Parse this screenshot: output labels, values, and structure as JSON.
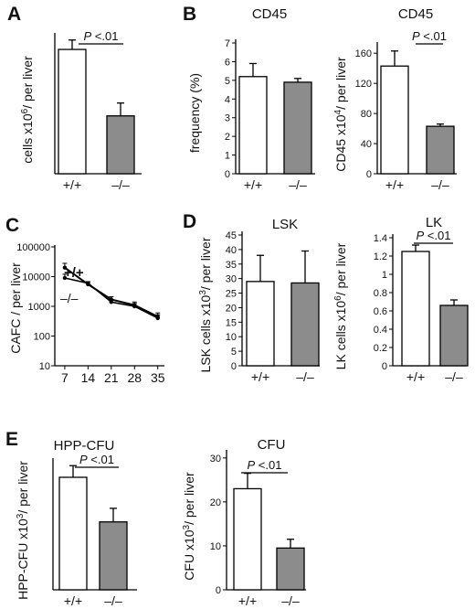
{
  "colors": {
    "wildtype": "#ffffff",
    "knockout": "#8c8c8c",
    "axis": "#000000"
  },
  "panel_letters": [
    "A",
    "B",
    "C",
    "D",
    "E"
  ],
  "chart_data": [
    {
      "id": "A",
      "letter": "A",
      "type": "bar",
      "title": "",
      "ylabel": "cells x10^6/ per liver",
      "ylim": [
        0,
        32
      ],
      "yticks_shown": false,
      "categories": [
        "+/+",
        "–/–"
      ],
      "values": [
        29,
        13.5
      ],
      "errors": [
        2.2,
        3
      ],
      "colors": [
        "#ffffff",
        "#8c8c8c"
      ],
      "annotation": "P <.01"
    },
    {
      "id": "B1",
      "letter": "B",
      "type": "bar",
      "title": "CD45",
      "ylabel": "frequency (%)",
      "ylim": [
        0,
        7
      ],
      "yticks": [
        "0",
        "1",
        "2",
        "3",
        "4",
        "5",
        "6",
        "7"
      ],
      "categories": [
        "+/+",
        "–/–"
      ],
      "values": [
        5.2,
        4.9
      ],
      "errors": [
        0.7,
        0.2
      ],
      "colors": [
        "#ffffff",
        "#8c8c8c"
      ],
      "annotation": ""
    },
    {
      "id": "B2",
      "letter": "",
      "type": "bar",
      "title": "CD45",
      "ylabel": "CD45 x10^4/ per liver",
      "ylim": [
        0,
        170
      ],
      "yticks": [
        "0",
        "40",
        "80",
        "120",
        "160"
      ],
      "categories": [
        "+/+",
        "–/–"
      ],
      "values": [
        143,
        63
      ],
      "errors": [
        20,
        3
      ],
      "colors": [
        "#ffffff",
        "#8c8c8c"
      ],
      "annotation": "P <.01"
    },
    {
      "id": "C",
      "letter": "C",
      "type": "line",
      "title": "",
      "ylabel": "CAFC / per liver",
      "yscale": "log",
      "ylim": [
        10,
        100000
      ],
      "yticks": [
        "10",
        "100",
        "1000",
        "10000",
        "100000"
      ],
      "xticks": [
        "7",
        "14",
        "21",
        "28",
        "35"
      ],
      "xlim": [
        4,
        37
      ],
      "series": [
        {
          "name": "+/+",
          "x": [
            7,
            14,
            21,
            28,
            35
          ],
          "y": [
            20000,
            5500,
            1700,
            1100,
            450
          ],
          "errors": [
            8000,
            1200,
            400,
            300,
            150
          ]
        },
        {
          "name": "–/–",
          "x": [
            7,
            14,
            21,
            28,
            35
          ],
          "y": [
            9000,
            6000,
            1400,
            1000,
            400
          ],
          "errors": [
            3000,
            800,
            300,
            250,
            120
          ]
        }
      ]
    },
    {
      "id": "D1",
      "letter": "D",
      "type": "bar",
      "title": "LSK",
      "ylabel": "LSK cells x10^3/ per liver",
      "ylim": [
        0,
        45
      ],
      "yticks": [
        "0",
        "5",
        "10",
        "15",
        "20",
        "25",
        "30",
        "35",
        "40",
        "45"
      ],
      "categories": [
        "+/+",
        "–/–"
      ],
      "values": [
        29,
        28.5
      ],
      "errors": [
        9,
        11
      ],
      "colors": [
        "#ffffff",
        "#8c8c8c"
      ],
      "annotation": ""
    },
    {
      "id": "D2",
      "letter": "",
      "type": "bar",
      "title": "LK",
      "ylabel": "LK cells x10^6/ per liver",
      "ylim": [
        0,
        1.4
      ],
      "yticks": [
        "0",
        "0.2",
        "0.4",
        "0.6",
        "0.8",
        "1",
        "1.2",
        "1.4"
      ],
      "categories": [
        "+/+",
        "–/–"
      ],
      "values": [
        1.25,
        0.66
      ],
      "errors": [
        0.07,
        0.06
      ],
      "colors": [
        "#ffffff",
        "#8c8c8c"
      ],
      "annotation": "P <.01"
    },
    {
      "id": "E1",
      "letter": "E",
      "type": "bar",
      "title": "HPP-CFU",
      "ylabel": "HPP-CFU x10^3/ per liver",
      "ylim": [
        0,
        33
      ],
      "yticks_shown": false,
      "categories": [
        "+/+",
        "–/–"
      ],
      "values": [
        29,
        17.5
      ],
      "errors": [
        3,
        3.5
      ],
      "colors": [
        "#ffffff",
        "#8c8c8c"
      ],
      "annotation": "P <.01"
    },
    {
      "id": "E2",
      "letter": "",
      "type": "bar",
      "title": "CFU",
      "ylabel": "CFU x10^3/ per liver",
      "ylim": [
        0,
        31
      ],
      "yticks": [
        "0",
        "10",
        "20",
        "30"
      ],
      "categories": [
        "+/+",
        "–/–"
      ],
      "values": [
        23,
        9.5
      ],
      "errors": [
        3.5,
        2
      ],
      "colors": [
        "#ffffff",
        "#8c8c8c"
      ],
      "annotation": "P <.01"
    }
  ]
}
